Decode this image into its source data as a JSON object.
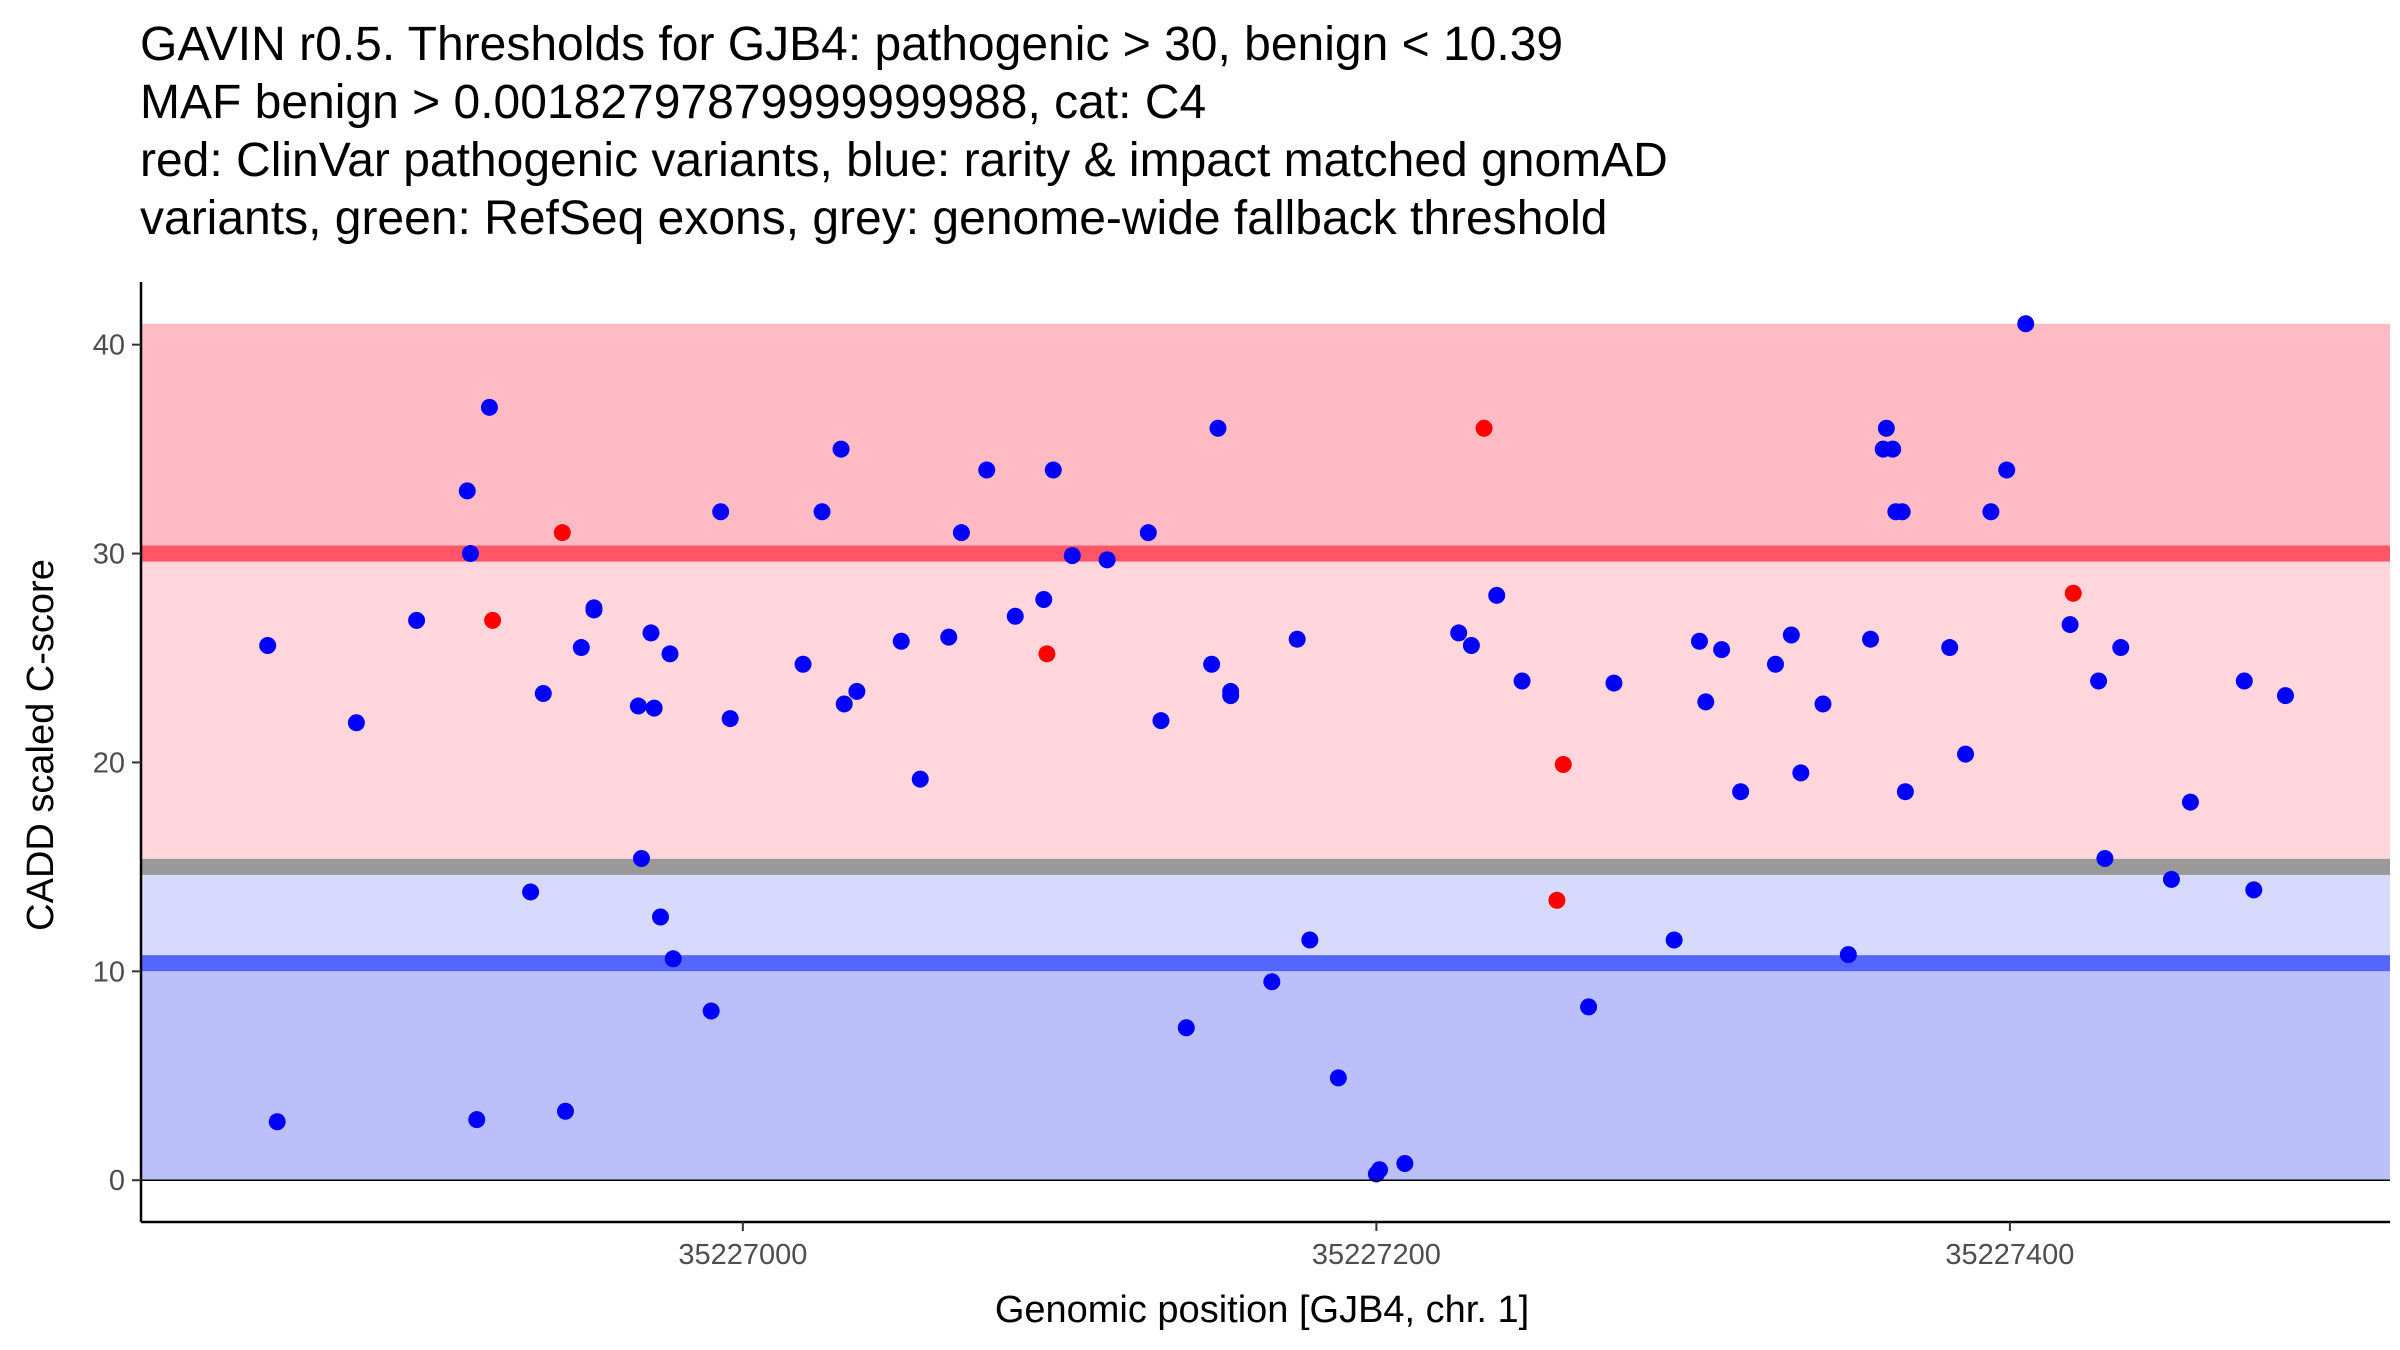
{
  "chart_data": {
    "type": "scatter",
    "title_lines": [
      "GAVIN r0.5. Thresholds for GJB4: pathogenic > 30, benign < 10.39",
      "MAF benign > 0.00182797879999999988, cat: C4",
      "red: ClinVar pathogenic variants, blue: rarity & impact matched gnomAD",
      "variants, green: RefSeq exons, grey: genome-wide fallback threshold"
    ],
    "xlabel": "Genomic position [GJB4, chr. 1]",
    "ylabel": "CADD scaled C-score",
    "x_ticks": [
      35227000,
      35227200,
      35227400
    ],
    "x_tick_labels": [
      "35227000",
      "35227200",
      "35227400"
    ],
    "y_ticks": [
      0,
      10,
      20,
      30,
      40
    ],
    "y_tick_labels": [
      "0",
      "10",
      "20",
      "30",
      "40"
    ],
    "xlim": [
      35226810,
      35227520
    ],
    "ylim": [
      -2,
      43
    ],
    "thresholds": {
      "pathogenic": 30,
      "benign": 10.39,
      "genome_wide_fallback": 15
    },
    "bands": [
      {
        "name": "pathogenic-high",
        "y0": 30,
        "y1": 41,
        "color": "#ffbbc3"
      },
      {
        "name": "pathogenic-mid",
        "y0": 15,
        "y1": 30,
        "color": "#ffd6dc"
      },
      {
        "name": "benign-mid",
        "y0": 10.39,
        "y1": 15,
        "color": "#d7d9fd"
      },
      {
        "name": "benign-low",
        "y0": 0,
        "y1": 10.39,
        "color": "#bbc0fb"
      }
    ],
    "threshold_line_colors": {
      "pathogenic": "#ff5566",
      "benign": "#5566ff",
      "genome_wide_fallback": "#999999"
    },
    "series": [
      {
        "name": "ClinVar pathogenic variants",
        "color": "#ff0000",
        "points": [
          [
            35226921,
            26.8
          ],
          [
            35226943,
            31.0
          ],
          [
            35227096,
            25.2
          ],
          [
            35227234,
            36.0
          ],
          [
            35227259,
            19.9
          ],
          [
            35227257,
            13.4
          ],
          [
            35227420,
            28.1
          ]
        ]
      },
      {
        "name": "rarity & impact matched gnomAD variants",
        "color": "#0000ff",
        "points": [
          [
            35226850,
            25.6
          ],
          [
            35226853,
            2.8
          ],
          [
            35226878,
            21.9
          ],
          [
            35226897,
            26.8
          ],
          [
            35226913,
            33.0
          ],
          [
            35226914,
            30.0
          ],
          [
            35226916,
            2.9
          ],
          [
            35226920,
            37.0
          ],
          [
            35226933,
            13.8
          ],
          [
            35226937,
            23.3
          ],
          [
            35226944,
            3.3
          ],
          [
            35226949,
            25.5
          ],
          [
            35226953,
            27.3
          ],
          [
            35226953,
            27.4
          ],
          [
            35226967,
            22.7
          ],
          [
            35226968,
            15.4
          ],
          [
            35226971,
            26.2
          ],
          [
            35226972,
            22.6
          ],
          [
            35226974,
            12.6
          ],
          [
            35226977,
            25.2
          ],
          [
            35226978,
            10.6
          ],
          [
            35226990,
            8.1
          ],
          [
            35226993,
            32.0
          ],
          [
            35226996,
            22.1
          ],
          [
            35227019,
            24.7
          ],
          [
            35227025,
            32.0
          ],
          [
            35227031,
            35.0
          ],
          [
            35227032,
            22.8
          ],
          [
            35227036,
            23.4
          ],
          [
            35227050,
            25.8
          ],
          [
            35227056,
            19.2
          ],
          [
            35227065,
            26.0
          ],
          [
            35227069,
            31.0
          ],
          [
            35227077,
            34.0
          ],
          [
            35227086,
            27.0
          ],
          [
            35227095,
            27.8
          ],
          [
            35227098,
            34.0
          ],
          [
            35227104,
            29.9
          ],
          [
            35227115,
            29.7
          ],
          [
            35227128,
            31.0
          ],
          [
            35227132,
            22.0
          ],
          [
            35227140,
            7.3
          ],
          [
            35227148,
            24.7
          ],
          [
            35227150,
            36.0
          ],
          [
            35227154,
            23.2
          ],
          [
            35227154,
            23.4
          ],
          [
            35227167,
            9.5
          ],
          [
            35227175,
            25.9
          ],
          [
            35227179,
            11.5
          ],
          [
            35227188,
            4.9
          ],
          [
            35227200,
            0.3
          ],
          [
            35227201,
            0.5
          ],
          [
            35227209,
            0.8
          ],
          [
            35227226,
            26.2
          ],
          [
            35227230,
            25.6
          ],
          [
            35227238,
            28.0
          ],
          [
            35227246,
            23.9
          ],
          [
            35227267,
            8.3
          ],
          [
            35227275,
            23.8
          ],
          [
            35227294,
            11.5
          ],
          [
            35227302,
            25.8
          ],
          [
            35227304,
            22.9
          ],
          [
            35227309,
            25.4
          ],
          [
            35227315,
            18.6
          ],
          [
            35227326,
            24.7
          ],
          [
            35227331,
            26.1
          ],
          [
            35227334,
            19.5
          ],
          [
            35227341,
            22.8
          ],
          [
            35227349,
            10.8
          ],
          [
            35227356,
            25.9
          ],
          [
            35227360,
            35.0
          ],
          [
            35227361,
            36.0
          ],
          [
            35227363,
            35.0
          ],
          [
            35227364,
            32.0
          ],
          [
            35227366,
            32.0
          ],
          [
            35227367,
            18.6
          ],
          [
            35227381,
            25.5
          ],
          [
            35227386,
            20.4
          ],
          [
            35227394,
            32.0
          ],
          [
            35227399,
            34.0
          ],
          [
            35227405,
            41.0
          ],
          [
            35227419,
            26.6
          ],
          [
            35227428,
            23.9
          ],
          [
            35227430,
            15.4
          ],
          [
            35227435,
            25.5
          ],
          [
            35227451,
            14.4
          ],
          [
            35227457,
            18.1
          ],
          [
            35227474,
            23.9
          ],
          [
            35227477,
            13.9
          ],
          [
            35227487,
            23.2
          ]
        ]
      }
    ]
  }
}
